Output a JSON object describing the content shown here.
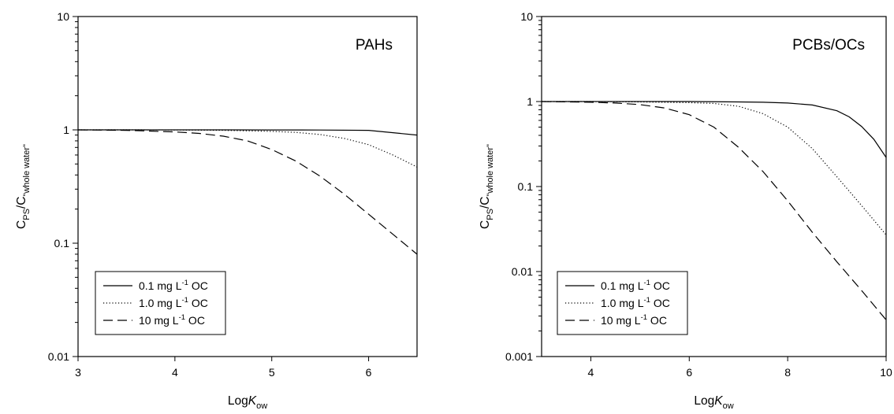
{
  "chart_data": [
    {
      "type": "line",
      "title": "",
      "annotation": "PAHs",
      "xlabel": "LogK",
      "xlabel_sub": "ow",
      "ylabel": "C",
      "ylabel_sub1": "PS",
      "ylabel_mid": "/C",
      "ylabel_sub2": "\"whole water\"",
      "xscale": "linear",
      "yscale": "log",
      "xlim": [
        3,
        6.5
      ],
      "ylim": [
        0.01,
        10
      ],
      "xticks": [
        3,
        4,
        5,
        6
      ],
      "xtick_labels": [
        "3",
        "4",
        "5",
        "6"
      ],
      "yticks": [
        0.01,
        0.1,
        1,
        10
      ],
      "ytick_labels": [
        "0.01",
        "0.1",
        "1",
        "10"
      ],
      "grid": false,
      "legend_position": "bottom-left",
      "series": [
        {
          "name": "0.1 mg L-1 OC",
          "label_main": "0.1 mg L",
          "label_sup": "-1",
          "label_end": " OC",
          "style": "solid",
          "x": [
            3,
            3.5,
            4,
            4.5,
            5,
            5.5,
            6,
            6.5
          ],
          "y": [
            1.0,
            1.0,
            1.0,
            1.0,
            0.999,
            0.997,
            0.99,
            0.9
          ]
        },
        {
          "name": "1.0 mg L-1 OC",
          "label_main": "1.0 mg L",
          "label_sup": "-1",
          "label_end": " OC",
          "style": "dotted",
          "x": [
            3,
            3.5,
            4,
            4.5,
            5,
            5.25,
            5.5,
            5.75,
            6,
            6.25,
            6.5
          ],
          "y": [
            1.0,
            1.0,
            0.998,
            0.99,
            0.97,
            0.95,
            0.91,
            0.84,
            0.74,
            0.6,
            0.47
          ]
        },
        {
          "name": "10 mg L-1 OC",
          "label_main": "10 mg L",
          "label_sup": "-1",
          "label_end": " OC",
          "style": "dashed",
          "x": [
            3,
            3.5,
            4,
            4.25,
            4.5,
            4.75,
            5,
            5.25,
            5.5,
            5.75,
            6,
            6.25,
            6.5
          ],
          "y": [
            1.0,
            0.99,
            0.96,
            0.93,
            0.88,
            0.8,
            0.67,
            0.53,
            0.39,
            0.27,
            0.18,
            0.12,
            0.08
          ]
        }
      ]
    },
    {
      "type": "line",
      "title": "",
      "annotation": "PCBs/OCs",
      "xlabel": "LogK",
      "xlabel_sub": "ow",
      "ylabel": "C",
      "ylabel_sub1": "PS",
      "ylabel_mid": "/C",
      "ylabel_sub2": "\"whole water\"",
      "xscale": "linear",
      "yscale": "log",
      "xlim": [
        3,
        10
      ],
      "ylim": [
        0.001,
        10
      ],
      "xticks": [
        4,
        6,
        8,
        10
      ],
      "xtick_labels": [
        "4",
        "6",
        "8",
        "10"
      ],
      "yticks": [
        0.001,
        0.01,
        0.1,
        1,
        10
      ],
      "ytick_labels": [
        "0.001",
        "0.01",
        "0.1",
        "1",
        "10"
      ],
      "grid": false,
      "legend_position": "bottom-left",
      "series": [
        {
          "name": "0.1 mg L-1 OC",
          "label_main": "0.1 mg L",
          "label_sup": "-1",
          "label_end": " OC",
          "style": "solid",
          "x": [
            3,
            4,
            5,
            6,
            7,
            7.5,
            8,
            8.5,
            9,
            9.25,
            9.5,
            9.75,
            10
          ],
          "y": [
            1.0,
            1.0,
            1.0,
            1.0,
            0.99,
            0.98,
            0.96,
            0.91,
            0.78,
            0.66,
            0.51,
            0.36,
            0.22
          ]
        },
        {
          "name": "1.0 mg L-1 OC",
          "label_main": "1.0 mg L",
          "label_sup": "-1",
          "label_end": " OC",
          "style": "dotted",
          "x": [
            3,
            4,
            5,
            6,
            6.5,
            7,
            7.5,
            8,
            8.5,
            9,
            9.5,
            10
          ],
          "y": [
            1.0,
            1.0,
            0.99,
            0.97,
            0.95,
            0.88,
            0.72,
            0.5,
            0.28,
            0.13,
            0.06,
            0.027
          ]
        },
        {
          "name": "10 mg L-1 OC",
          "label_main": "10 mg L",
          "label_sup": "-1",
          "label_end": " OC",
          "style": "dashed",
          "x": [
            3,
            4,
            4.5,
            5,
            5.5,
            6,
            6.5,
            7,
            7.5,
            8,
            8.5,
            9,
            9.5,
            10
          ],
          "y": [
            1.0,
            0.98,
            0.96,
            0.92,
            0.84,
            0.7,
            0.5,
            0.29,
            0.15,
            0.068,
            0.029,
            0.013,
            0.006,
            0.0027
          ]
        }
      ]
    }
  ]
}
